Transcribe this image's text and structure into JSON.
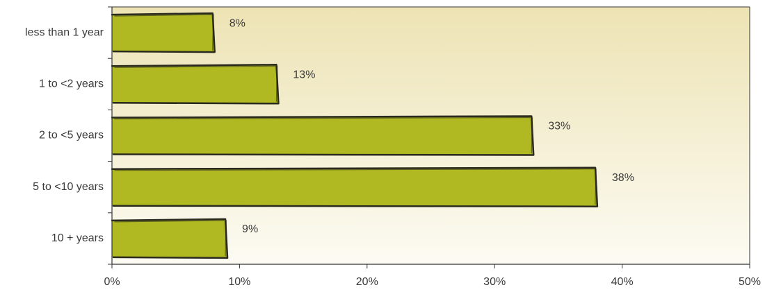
{
  "chart_data": {
    "type": "bar",
    "orientation": "horizontal",
    "categories": [
      "less than 1 year",
      "1 to <2 years",
      "2 to <5 years",
      "5 to <10 years",
      "10 + years"
    ],
    "values": [
      8,
      13,
      33,
      38,
      9
    ],
    "value_labels": [
      "8%",
      "13%",
      "33%",
      "38%",
      "9%"
    ],
    "xlim": [
      0,
      50
    ],
    "x_ticks": [
      0,
      10,
      20,
      30,
      40,
      50
    ],
    "x_tick_labels": [
      "0%",
      "10%",
      "20%",
      "30%",
      "40%",
      "50%"
    ],
    "title": "",
    "xlabel": "",
    "ylabel": "",
    "grid": false,
    "legend": "none",
    "colors": {
      "bar": "#b0b921",
      "bar_outline": "#2a2a1e",
      "background_top": "#ede3b4",
      "background_bottom": "#fcfbf3",
      "axis": "#333333"
    }
  }
}
